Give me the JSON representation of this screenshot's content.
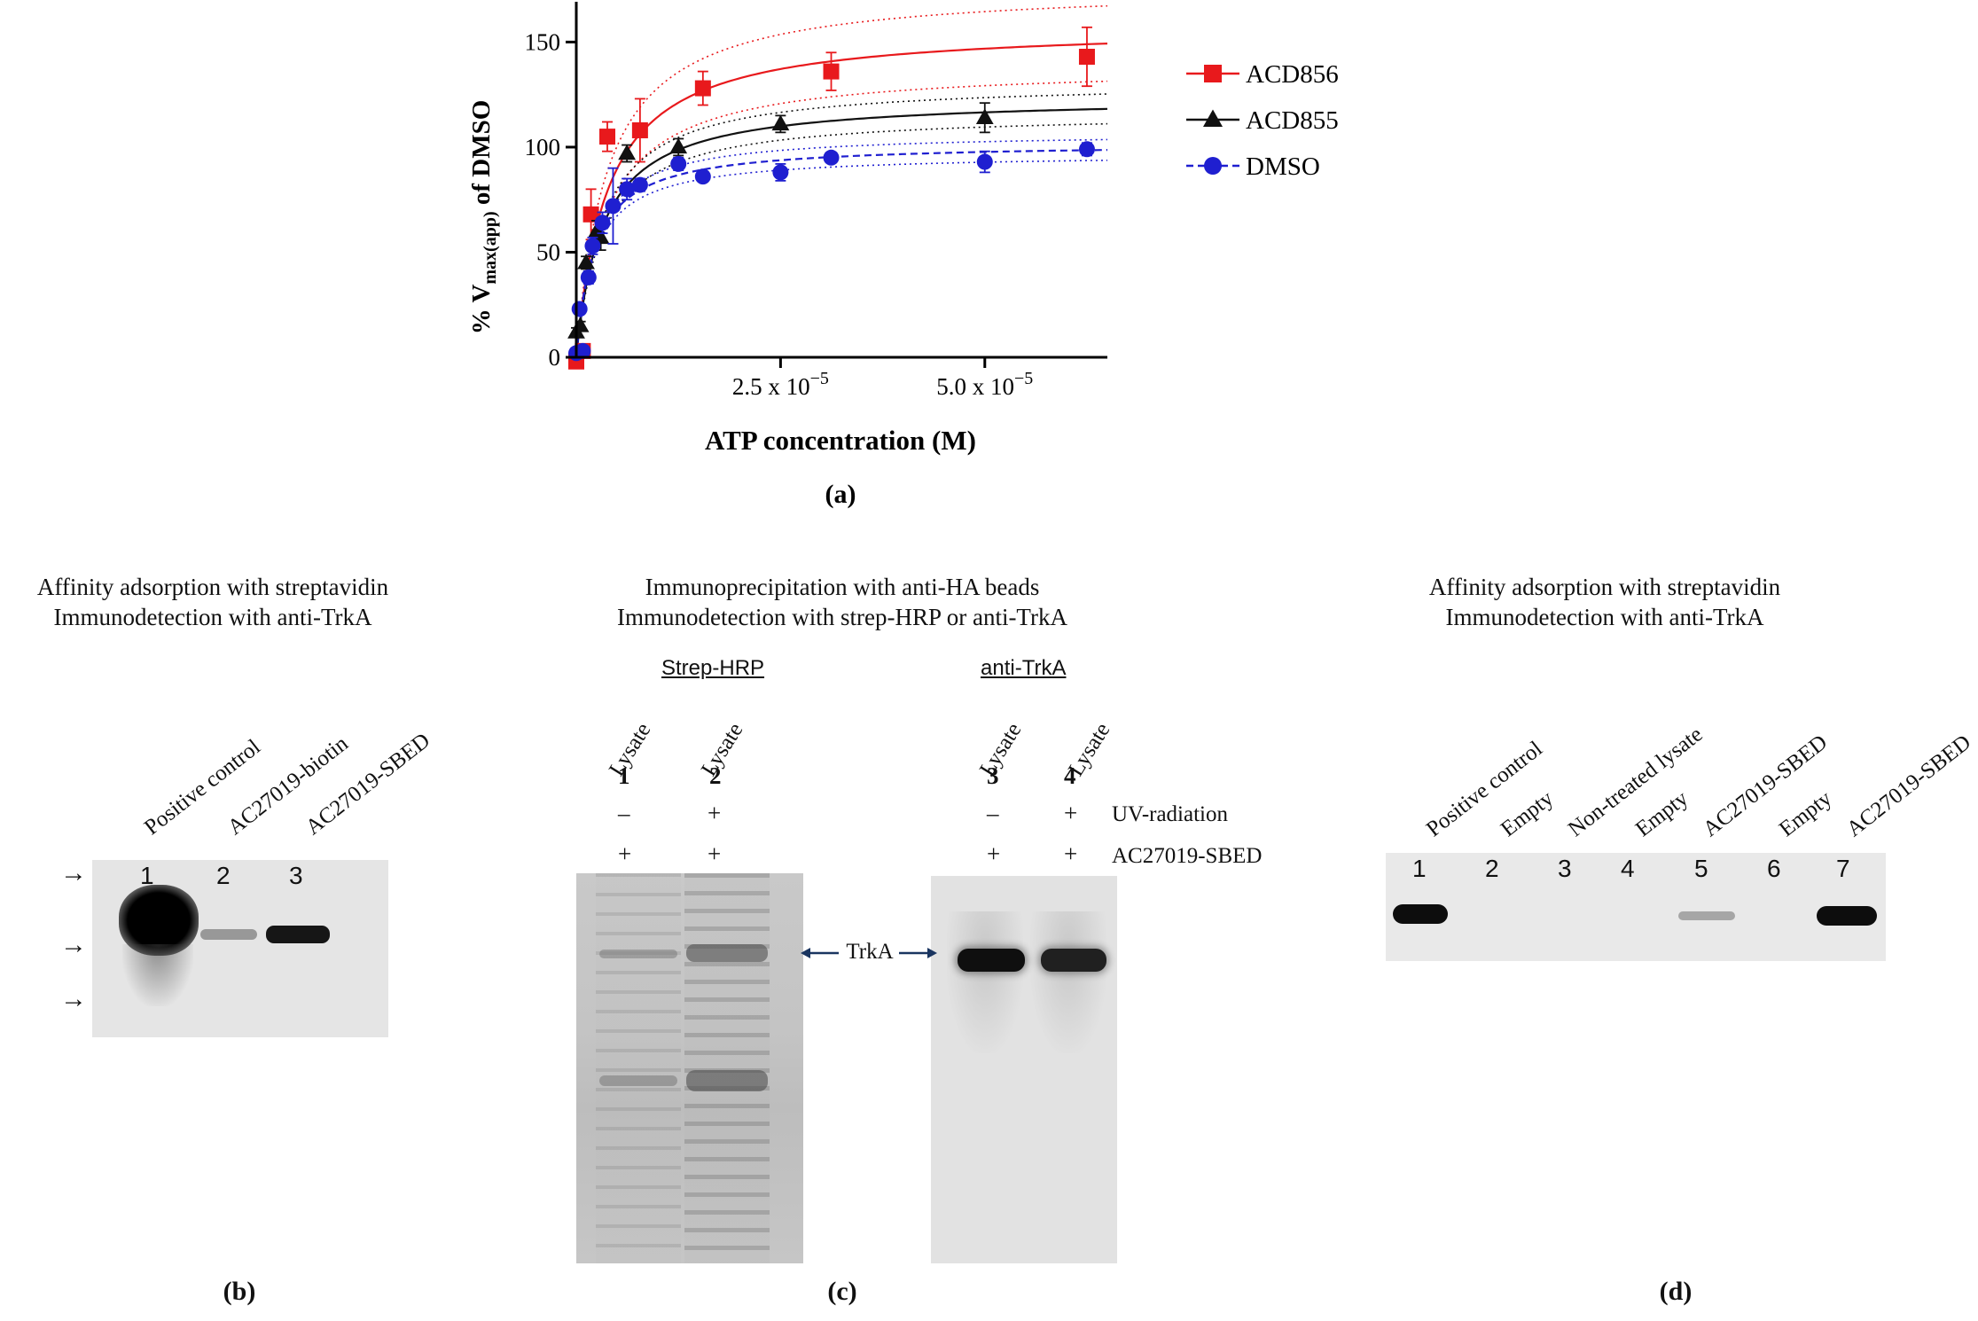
{
  "chart_data": {
    "type": "scatter",
    "panel": "(a)",
    "xlabel": "ATP concentration (M)",
    "ylabel_parts": [
      "% V",
      "max(app)",
      " of DMSO"
    ],
    "xlim": [
      0,
      6.5e-05
    ],
    "ylim": [
      0,
      170
    ],
    "yticks": [
      0,
      50,
      100,
      150
    ],
    "xticks": [
      {
        "value": 2.5e-05,
        "label_base": "2.5 x 10",
        "label_exp": "−5"
      },
      {
        "value": 5e-05,
        "label_base": "5.0 x 10",
        "label_exp": "−5"
      }
    ],
    "series": [
      {
        "name": "ACD856",
        "color": "#e8191c",
        "marker": "square",
        "dash": "",
        "vmax": 158,
        "km": 3.8e-06,
        "ci": 0.12,
        "points": [
          [
            0,
            -2,
            0
          ],
          [
            8e-07,
            3,
            2
          ],
          [
            1.8e-06,
            68,
            12
          ],
          [
            3.8e-06,
            105,
            7
          ],
          [
            7.8e-06,
            108,
            15
          ],
          [
            1.55e-05,
            128,
            8
          ],
          [
            3.12e-05,
            136,
            9
          ],
          [
            6.25e-05,
            143,
            14
          ]
        ]
      },
      {
        "name": "ACD855",
        "color": "#111111",
        "marker": "triangle",
        "dash": "",
        "vmax": 124,
        "km": 3.2e-06,
        "ci": 0.06,
        "points": [
          [
            0,
            12,
            2
          ],
          [
            5e-07,
            15,
            2
          ],
          [
            1.2e-06,
            45,
            3
          ],
          [
            2.5e-06,
            60,
            5
          ],
          [
            3e-06,
            57,
            6
          ],
          [
            6.2e-06,
            97,
            4
          ],
          [
            1.25e-05,
            100,
            4
          ],
          [
            2.5e-05,
            111,
            4
          ],
          [
            5e-05,
            114,
            7
          ]
        ]
      },
      {
        "name": "DMSO",
        "color": "#1f1fd0",
        "marker": "circle",
        "dash": "8,5",
        "vmax": 102,
        "km": 2.2e-06,
        "ci": 0.05,
        "points": [
          [
            0,
            2,
            1
          ],
          [
            4e-07,
            23,
            2
          ],
          [
            8e-07,
            3,
            2
          ],
          [
            1.5e-06,
            38,
            3
          ],
          [
            2e-06,
            53,
            4
          ],
          [
            3.2e-06,
            64,
            5
          ],
          [
            4.5e-06,
            72,
            18
          ],
          [
            6.2e-06,
            80,
            5
          ],
          [
            7.8e-06,
            82,
            3
          ],
          [
            1.25e-05,
            92,
            3
          ],
          [
            1.55e-05,
            86,
            2
          ],
          [
            2.5e-05,
            88,
            4
          ],
          [
            3.12e-05,
            95,
            2
          ],
          [
            5e-05,
            93,
            5
          ],
          [
            6.25e-05,
            99,
            3
          ]
        ]
      }
    ]
  },
  "panel_b": {
    "title_lines": [
      "Affinity adsorption with streptavidin",
      "Immunodetection with anti-TrkA"
    ],
    "lane_labels": [
      "Positive control",
      "AC27019-biotin",
      "AC27019-SBED"
    ],
    "lane_numbers": [
      "1",
      "2",
      "3"
    ],
    "arrow_icon": "→",
    "panel_letter": "(b)"
  },
  "panel_c": {
    "title_lines": [
      "Immunoprecipitation with anti-HA beads",
      "Immunodetection with strep-HRP or anti-TrkA"
    ],
    "group_left": "Strep-HRP",
    "group_right": "anti-TrkA",
    "lane_labels": [
      "Lysate",
      "Lysate",
      "Lysate",
      "Lysate"
    ],
    "lane_numbers": [
      "1",
      "2",
      "3",
      "4"
    ],
    "uv_signs": [
      "–",
      "+",
      "–",
      "+"
    ],
    "uv_label": "UV-radiation",
    "sbed_signs": [
      "+",
      "+",
      "+",
      "+"
    ],
    "sbed_label": "AC27019-SBED",
    "trka_label": "TrkA",
    "arrow_color": "#1a3560",
    "panel_letter": "(c)"
  },
  "panel_d": {
    "title_lines": [
      "Affinity adsorption with streptavidin",
      "Immunodetection with anti-TrkA"
    ],
    "lane_labels": [
      "Positive control",
      "Empty",
      "Non-treated lysate",
      "Empty",
      "AC27019-SBED",
      "Empty",
      "AC27019-SBED"
    ],
    "lane_numbers": [
      "1",
      "2",
      "3",
      "4",
      "5",
      "6",
      "7"
    ],
    "panel_letter": "(d)"
  }
}
